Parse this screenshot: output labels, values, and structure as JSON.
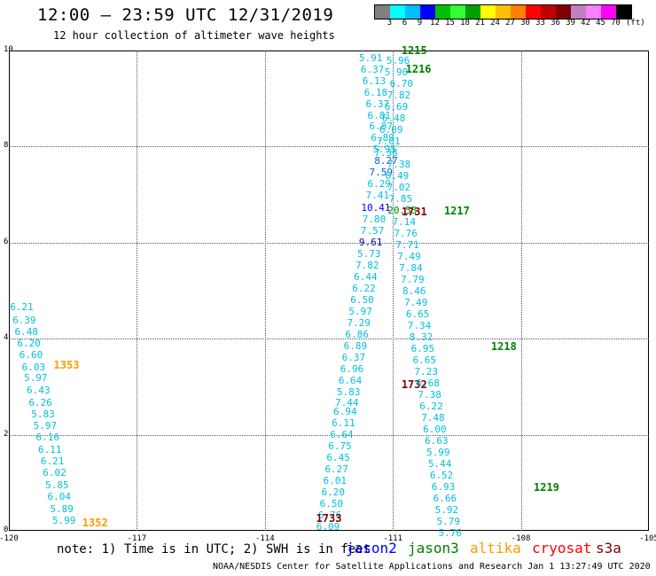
{
  "title": "12:00 — 23:59 UTC 12/31/2019",
  "subtitle": "12 hour collection of altimeter wave heights",
  "legend": {
    "colors": [
      "#808080",
      "#00ffff",
      "#00bfff",
      "#0000ff",
      "#00c000",
      "#30ff30",
      "#00a000",
      "#ffff00",
      "#ffc000",
      "#ff8000",
      "#ff0000",
      "#c00000",
      "#800000",
      "#c080c0",
      "#ff80ff",
      "#ff00ff",
      "#000000"
    ],
    "labels": [
      "3",
      "6",
      "9",
      "12",
      "15",
      "18",
      "21",
      "24",
      "27",
      "30",
      "33",
      "36",
      "39",
      "42",
      "45",
      "70"
    ],
    "unit": "(ft)"
  },
  "axes": {
    "x_ticks": [
      "-120",
      "-117",
      "-114",
      "-111",
      "-108",
      "-105"
    ],
    "y_ticks": [
      "0",
      "2",
      "4",
      "6",
      "8",
      "10"
    ]
  },
  "tracks": [
    {
      "name": "track-1353",
      "time": "1353",
      "time_color": "#ff9900",
      "time_lat": 3.45,
      "time_lon": -118.95,
      "points": [
        {
          "lon": -119.7,
          "lat": 4.66,
          "v": "6.21",
          "c": "#00c0e0"
        },
        {
          "lon": -119.64,
          "lat": 4.4,
          "v": "6.39",
          "c": "#00c0e0"
        },
        {
          "lon": -119.59,
          "lat": 4.16,
          "v": "6.48",
          "c": "#00c0e0"
        },
        {
          "lon": -119.53,
          "lat": 3.91,
          "v": "6.20",
          "c": "#00c0e0"
        },
        {
          "lon": -119.48,
          "lat": 3.67,
          "v": "6.60",
          "c": "#00c0e0"
        },
        {
          "lon": -119.42,
          "lat": 3.42,
          "v": "6.03",
          "c": "#00c0e0"
        },
        {
          "lon": -119.37,
          "lat": 3.19,
          "v": "5.97",
          "c": "#00c0e0"
        },
        {
          "lon": -119.31,
          "lat": 2.93,
          "v": "6.43",
          "c": "#00c0e0"
        },
        {
          "lon": -119.26,
          "lat": 2.68,
          "v": "6.26",
          "c": "#00c0e0"
        },
        {
          "lon": -119.2,
          "lat": 2.44,
          "v": "5.83",
          "c": "#00c0e0"
        },
        {
          "lon": -119.15,
          "lat": 2.2,
          "v": "5.97",
          "c": "#00c0e0"
        },
        {
          "lon": -119.09,
          "lat": 1.95,
          "v": "6.16",
          "c": "#00c0e0"
        },
        {
          "lon": -119.04,
          "lat": 1.7,
          "v": "6.11",
          "c": "#00c0e0"
        },
        {
          "lon": -118.98,
          "lat": 1.46,
          "v": "6.21",
          "c": "#00c0e0"
        },
        {
          "lon": -118.93,
          "lat": 1.21,
          "v": "6.02",
          "c": "#00c0e0"
        },
        {
          "lon": -118.87,
          "lat": 0.96,
          "v": "5.85",
          "c": "#00c0e0"
        },
        {
          "lon": -118.82,
          "lat": 0.72,
          "v": "6.04",
          "c": "#00c0e0"
        },
        {
          "lon": -118.76,
          "lat": 0.47,
          "v": "5.89",
          "c": "#00c0e0"
        },
        {
          "lon": -118.71,
          "lat": 0.22,
          "v": "5.99",
          "c": "#00c0e0"
        }
      ]
    },
    {
      "name": "track-1352",
      "time": "1352",
      "time_color": "#ff9900",
      "time_lat": 0.16,
      "time_lon": -118.28,
      "points": []
    },
    {
      "name": "track-1731-1733",
      "time": "1733",
      "time_color": "#800000",
      "time_lat": 0.25,
      "time_lon": -112.8,
      "points": [
        {
          "lon": -111.52,
          "lat": 9.85,
          "v": "5.91",
          "c": "#00c0e0"
        },
        {
          "lon": -111.48,
          "lat": 9.61,
          "v": "6.37",
          "c": "#00c0e0"
        },
        {
          "lon": -111.44,
          "lat": 9.37,
          "v": "6.13",
          "c": "#00c0e0"
        },
        {
          "lon": -111.4,
          "lat": 9.13,
          "v": "6.18",
          "c": "#00c0e0"
        },
        {
          "lon": -111.36,
          "lat": 8.9,
          "v": "6.37",
          "c": "#00c0e0"
        },
        {
          "lon": -111.32,
          "lat": 8.66,
          "v": "6.81",
          "c": "#00c0e0"
        },
        {
          "lon": -111.28,
          "lat": 8.43,
          "v": "6.87",
          "c": "#00c0e0"
        },
        {
          "lon": -111.24,
          "lat": 8.19,
          "v": "6.89",
          "c": "#00c0e0"
        },
        {
          "lon": -111.2,
          "lat": 7.95,
          "v": "5.95",
          "c": "#00c0e0"
        },
        {
          "lon": -111.16,
          "lat": 7.71,
          "v": "8.27",
          "c": "#0060e0"
        },
        {
          "lon": -111.28,
          "lat": 7.47,
          "v": "7.59",
          "c": "#0060e0"
        },
        {
          "lon": -111.32,
          "lat": 7.23,
          "v": "6.29",
          "c": "#00c0e0"
        },
        {
          "lon": -111.36,
          "lat": 6.99,
          "v": "7.41",
          "c": "#00c0e0"
        },
        {
          "lon": -111.4,
          "lat": 6.74,
          "v": "10.41",
          "c": "#0000ff"
        },
        {
          "lon": -111.44,
          "lat": 6.5,
          "v": "7.80",
          "c": "#00c0e0"
        },
        {
          "lon": -111.48,
          "lat": 6.26,
          "v": "7.57",
          "c": "#00c0e0"
        },
        {
          "lon": -111.52,
          "lat": 6.02,
          "v": "9.61",
          "c": "#0000c0"
        },
        {
          "lon": -111.56,
          "lat": 5.78,
          "v": "5.73",
          "c": "#00c0e0"
        },
        {
          "lon": -111.6,
          "lat": 5.54,
          "v": "7.82",
          "c": "#00c0e0"
        },
        {
          "lon": -111.64,
          "lat": 5.3,
          "v": "6.44",
          "c": "#00c0e0"
        },
        {
          "lon": -111.68,
          "lat": 5.06,
          "v": "6.22",
          "c": "#00c0e0"
        },
        {
          "lon": -111.72,
          "lat": 4.82,
          "v": "6.50",
          "c": "#00c0e0"
        },
        {
          "lon": -111.76,
          "lat": 4.58,
          "v": "5.97",
          "c": "#00c0e0"
        },
        {
          "lon": -111.8,
          "lat": 4.34,
          "v": "7.29",
          "c": "#00c0e0"
        },
        {
          "lon": -111.84,
          "lat": 4.1,
          "v": "6.86",
          "c": "#00c0e0"
        },
        {
          "lon": -111.88,
          "lat": 3.86,
          "v": "6.89",
          "c": "#00c0e0"
        },
        {
          "lon": -111.92,
          "lat": 3.62,
          "v": "6.37",
          "c": "#00c0e0"
        },
        {
          "lon": -111.96,
          "lat": 3.38,
          "v": "6.96",
          "c": "#00c0e0"
        },
        {
          "lon": -112.0,
          "lat": 3.14,
          "v": "6.64",
          "c": "#00c0e0"
        },
        {
          "lon": -112.04,
          "lat": 2.9,
          "v": "5.83",
          "c": "#00c0e0"
        },
        {
          "lon": -112.08,
          "lat": 2.67,
          "v": "7.44",
          "c": "#00c0e0"
        },
        {
          "lon": -112.12,
          "lat": 2.49,
          "v": "6.94",
          "c": "#00c0e0"
        },
        {
          "lon": -112.16,
          "lat": 2.25,
          "v": "6.11",
          "c": "#00c0e0"
        },
        {
          "lon": -112.2,
          "lat": 2.01,
          "v": "6.64",
          "c": "#00c0e0"
        },
        {
          "lon": -112.24,
          "lat": 1.77,
          "v": "6.75",
          "c": "#00c0e0"
        },
        {
          "lon": -112.28,
          "lat": 1.53,
          "v": "6.45",
          "c": "#00c0e0"
        },
        {
          "lon": -112.32,
          "lat": 1.29,
          "v": "6.27",
          "c": "#00c0e0"
        },
        {
          "lon": -112.36,
          "lat": 1.05,
          "v": "6.01",
          "c": "#00c0e0"
        },
        {
          "lon": -112.4,
          "lat": 0.81,
          "v": "6.20",
          "c": "#00c0e0"
        },
        {
          "lon": -112.44,
          "lat": 0.57,
          "v": "6.50",
          "c": "#00c0e0"
        },
        {
          "lon": -112.48,
          "lat": 0.33,
          "v": "6.76",
          "c": "#00c0e0"
        },
        {
          "lon": -112.52,
          "lat": 0.09,
          "v": "6.09",
          "c": "#00c0e0"
        },
        {
          "lon": -112.56,
          "lat": -0.15,
          "v": "6.37",
          "c": "#00c0e0"
        },
        {
          "lon": -112.6,
          "lat": -0.39,
          "v": "7.93",
          "c": "#00c0e0"
        }
      ]
    },
    {
      "name": "track-1731",
      "time": "1731",
      "time_color": "#800000",
      "time_lat": 6.65,
      "time_lon": -110.8,
      "points": []
    },
    {
      "name": "track-1732",
      "time": "1732",
      "time_color": "#800000",
      "time_lat": 3.04,
      "time_lon": -110.8,
      "points": []
    },
    {
      "name": "track-1215-1219",
      "time": "1215",
      "time_color": "#008000",
      "time_lat": 10.0,
      "time_lon": -110.8,
      "points": [
        {
          "lon": -110.88,
          "lat": 9.8,
          "v": "5.96",
          "c": "#00c0e0"
        },
        {
          "lon": -110.92,
          "lat": 9.56,
          "v": "5.90",
          "c": "#00c0e0"
        },
        {
          "lon": -110.8,
          "lat": 9.32,
          "v": "6.70",
          "c": "#00c0e0"
        },
        {
          "lon": -110.86,
          "lat": 9.08,
          "v": "7.82",
          "c": "#00c0e0"
        },
        {
          "lon": -110.92,
          "lat": 8.84,
          "v": "6.69",
          "c": "#00c0e0"
        },
        {
          "lon": -110.98,
          "lat": 8.6,
          "v": "6.48",
          "c": "#00c0e0"
        },
        {
          "lon": -111.04,
          "lat": 8.36,
          "v": "6.09",
          "c": "#00c0e0"
        },
        {
          "lon": -111.1,
          "lat": 8.12,
          "v": "7.01",
          "c": "#00c0e0"
        },
        {
          "lon": -111.16,
          "lat": 7.88,
          "v": "7.38",
          "c": "#00c0e0"
        },
        {
          "lon": -110.86,
          "lat": 7.64,
          "v": "7.38",
          "c": "#00c0e0"
        },
        {
          "lon": -110.9,
          "lat": 7.4,
          "v": "6.49",
          "c": "#00c0e0"
        },
        {
          "lon": -110.86,
          "lat": 7.16,
          "v": "7.02",
          "c": "#00c0e0"
        },
        {
          "lon": -110.82,
          "lat": 6.92,
          "v": "7.85",
          "c": "#00c0e0"
        },
        {
          "lon": -110.78,
          "lat": 6.68,
          "v": "20.53",
          "c": "#009000"
        },
        {
          "lon": -110.74,
          "lat": 6.44,
          "v": "7.14",
          "c": "#00c0e0"
        },
        {
          "lon": -110.7,
          "lat": 6.2,
          "v": "7.76",
          "c": "#00c0e0"
        },
        {
          "lon": -110.66,
          "lat": 5.96,
          "v": "7.71",
          "c": "#00c0e0"
        },
        {
          "lon": -110.62,
          "lat": 5.72,
          "v": "7.49",
          "c": "#00c0e0"
        },
        {
          "lon": -110.58,
          "lat": 5.48,
          "v": "7.84",
          "c": "#00c0e0"
        },
        {
          "lon": -110.54,
          "lat": 5.24,
          "v": "7.79",
          "c": "#00c0e0"
        },
        {
          "lon": -110.5,
          "lat": 5.0,
          "v": "8.46",
          "c": "#00c0e0"
        },
        {
          "lon": -110.46,
          "lat": 4.76,
          "v": "7.49",
          "c": "#00c0e0"
        },
        {
          "lon": -110.42,
          "lat": 4.52,
          "v": "6.65",
          "c": "#00c0e0"
        },
        {
          "lon": -110.38,
          "lat": 4.28,
          "v": "7.34",
          "c": "#00c0e0"
        },
        {
          "lon": -110.34,
          "lat": 4.04,
          "v": "8.32",
          "c": "#00c0e0"
        },
        {
          "lon": -110.3,
          "lat": 3.8,
          "v": "6.95",
          "c": "#00c0e0"
        },
        {
          "lon": -110.26,
          "lat": 3.56,
          "v": "6.65",
          "c": "#00c0e0"
        },
        {
          "lon": -110.22,
          "lat": 3.32,
          "v": "7.23",
          "c": "#00c0e0"
        },
        {
          "lon": -110.18,
          "lat": 3.08,
          "v": "6.68",
          "c": "#00c0e0"
        },
        {
          "lon": -110.14,
          "lat": 2.84,
          "v": "7.38",
          "c": "#00c0e0"
        },
        {
          "lon": -110.1,
          "lat": 2.6,
          "v": "6.22",
          "c": "#00c0e0"
        },
        {
          "lon": -110.06,
          "lat": 2.36,
          "v": "7.48",
          "c": "#00c0e0"
        },
        {
          "lon": -110.02,
          "lat": 2.12,
          "v": "6.00",
          "c": "#00c0e0"
        },
        {
          "lon": -109.98,
          "lat": 1.88,
          "v": "6.63",
          "c": "#00c0e0"
        },
        {
          "lon": -109.94,
          "lat": 1.64,
          "v": "5.99",
          "c": "#00c0e0"
        },
        {
          "lon": -109.9,
          "lat": 1.4,
          "v": "5.44",
          "c": "#00c0e0"
        },
        {
          "lon": -109.86,
          "lat": 1.16,
          "v": "6.52",
          "c": "#00c0e0"
        },
        {
          "lon": -109.82,
          "lat": 0.92,
          "v": "6.93",
          "c": "#00c0e0"
        },
        {
          "lon": -109.78,
          "lat": 0.68,
          "v": "6.66",
          "c": "#00c0e0"
        },
        {
          "lon": -109.74,
          "lat": 0.44,
          "v": "5.92",
          "c": "#00c0e0"
        },
        {
          "lon": -109.7,
          "lat": 0.2,
          "v": "5.79",
          "c": "#00c0e0"
        },
        {
          "lon": -109.66,
          "lat": -0.04,
          "v": "5.76",
          "c": "#00c0e0"
        },
        {
          "lon": -109.62,
          "lat": -0.28,
          "v": "5.62",
          "c": "#00c0e0"
        },
        {
          "lon": -109.58,
          "lat": -0.52,
          "v": "6.41",
          "c": "#00c0e0"
        },
        {
          "lon": -109.54,
          "lat": -0.76,
          "v": "5.55",
          "c": "#00c0e0"
        },
        {
          "lon": -109.5,
          "lat": -1.0,
          "v": "5.10",
          "c": "#00c0e0"
        },
        {
          "lon": -109.46,
          "lat": -1.24,
          "v": "6.08",
          "c": "#00c0e0"
        },
        {
          "lon": -109.42,
          "lat": -1.48,
          "v": "5.72",
          "c": "#00c0e0"
        },
        {
          "lon": -109.38,
          "lat": -1.72,
          "v": "6.80",
          "c": "#00c0e0"
        }
      ]
    },
    {
      "name": "track-1216",
      "time": "1216",
      "time_color": "#008000",
      "time_lat": 9.62,
      "time_lon": -110.7,
      "points": []
    },
    {
      "name": "track-1217",
      "time": "1217",
      "time_color": "#008000",
      "time_lat": 6.66,
      "time_lon": -109.8,
      "points": []
    },
    {
      "name": "track-1218",
      "time": "1218",
      "time_color": "#008000",
      "time_lat": 3.83,
      "time_lon": -108.7,
      "points": []
    },
    {
      "name": "track-1219",
      "time": "1219",
      "time_color": "#008000",
      "time_lat": 0.9,
      "time_lon": -107.7,
      "points": []
    }
  ],
  "footer": {
    "note": "note: 1) Time is in UTC; 2) SWH is in feet",
    "satellites": [
      {
        "name": "jason2",
        "color": "#0000ff"
      },
      {
        "name": "jason3",
        "color": "#008000"
      },
      {
        "name": "altika",
        "color": "#ff9900"
      },
      {
        "name": "cryosat",
        "color": "#ff0000"
      },
      {
        "name": "s3a",
        "color": "#800000"
      }
    ],
    "credit": "NOAA/NESDIS Center for Satellite Applications and Research   Jan  1 13:27:49 UTC 2020"
  }
}
